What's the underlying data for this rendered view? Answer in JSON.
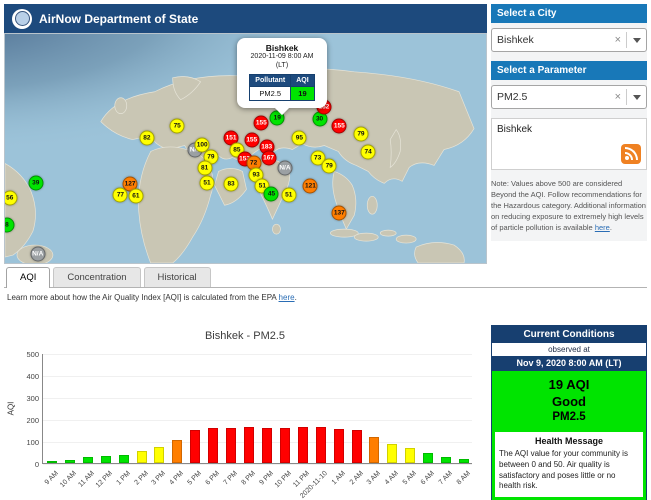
{
  "header": {
    "title": "AirNow Department of State"
  },
  "sidebar": {
    "city_select": {
      "label": "Select a City",
      "value": "Bishkek",
      "clear": "×"
    },
    "parameter_select": {
      "label": "Select a Parameter",
      "value": "PM2.5",
      "clear": "×"
    },
    "feed_box": {
      "city": "Bishkek"
    },
    "note": {
      "text_before": "Note: Values above 500 are considered Beyond the AQI. Follow recommendations for the Hazardous category. Additional information on reducing exposure to extremely high levels of particle pollution is available ",
      "link": "here",
      "text_after": "."
    }
  },
  "map": {
    "popup": {
      "city": "Bishkek",
      "datetime_line1": "2020-11-09 8:00 AM",
      "datetime_line2": "(LT)",
      "col_pollutant": "Pollutant",
      "col_aqi": "AQI",
      "row_pollutant": "PM2.5",
      "row_aqi": "19"
    },
    "markers": [
      {
        "v": "39",
        "l": "green",
        "x": 6.4,
        "y": 65
      },
      {
        "v": "56",
        "l": "yellow",
        "x": 1.0,
        "y": 71.5
      },
      {
        "v": "8",
        "l": "green",
        "x": 0.4,
        "y": 83.5
      },
      {
        "v": "N/A",
        "l": "na",
        "x": 6.8,
        "y": 96
      },
      {
        "v": "82",
        "l": "yellow",
        "x": 29.5,
        "y": 45.5
      },
      {
        "v": "75",
        "l": "yellow",
        "x": 35.8,
        "y": 40
      },
      {
        "v": "127",
        "l": "orange",
        "x": 26.0,
        "y": 65.5
      },
      {
        "v": "77",
        "l": "yellow",
        "x": 24.0,
        "y": 70.5
      },
      {
        "v": "61",
        "l": "yellow",
        "x": 27.2,
        "y": 70.8
      },
      {
        "v": "N/A",
        "l": "na",
        "x": 39.6,
        "y": 50.5
      },
      {
        "v": "100",
        "l": "yellow",
        "x": 41.0,
        "y": 48.5
      },
      {
        "v": "79",
        "l": "yellow",
        "x": 42.8,
        "y": 53.5
      },
      {
        "v": "151",
        "l": "red",
        "x": 47.0,
        "y": 45.5
      },
      {
        "v": "81",
        "l": "yellow",
        "x": 41.5,
        "y": 58.5
      },
      {
        "v": "51",
        "l": "yellow",
        "x": 42.0,
        "y": 65.0
      },
      {
        "v": "83",
        "l": "yellow",
        "x": 47.0,
        "y": 65.5
      },
      {
        "v": "163",
        "l": "red",
        "x": 52.4,
        "y": 27.5
      },
      {
        "v": "155",
        "l": "red",
        "x": 53.3,
        "y": 39.0
      },
      {
        "v": "19",
        "l": "green",
        "x": 56.6,
        "y": 36.5
      },
      {
        "v": "85",
        "l": "yellow",
        "x": 48.2,
        "y": 50.5
      },
      {
        "v": "155",
        "l": "red",
        "x": 51.3,
        "y": 46.5
      },
      {
        "v": "183",
        "l": "red",
        "x": 54.4,
        "y": 49.5
      },
      {
        "v": "153",
        "l": "red",
        "x": 49.8,
        "y": 54.5
      },
      {
        "v": "72",
        "l": "orange",
        "x": 51.7,
        "y": 56.5
      },
      {
        "v": "167",
        "l": "red",
        "x": 54.8,
        "y": 54.0
      },
      {
        "v": "93",
        "l": "yellow",
        "x": 52.2,
        "y": 61.5
      },
      {
        "v": "51",
        "l": "yellow",
        "x": 53.5,
        "y": 66.5
      },
      {
        "v": "45",
        "l": "green",
        "x": 55.4,
        "y": 70.0
      },
      {
        "v": "N/A",
        "l": "na",
        "x": 58.2,
        "y": 58.5
      },
      {
        "v": "95",
        "l": "yellow",
        "x": 61.2,
        "y": 45.5
      },
      {
        "v": "30",
        "l": "green",
        "x": 65.4,
        "y": 37.0
      },
      {
        "v": "152",
        "l": "red",
        "x": 66.3,
        "y": 32.0
      },
      {
        "v": "155",
        "l": "red",
        "x": 69.5,
        "y": 40.0
      },
      {
        "v": "73",
        "l": "yellow",
        "x": 65.0,
        "y": 54.0
      },
      {
        "v": "79",
        "l": "yellow",
        "x": 67.4,
        "y": 57.5
      },
      {
        "v": "121",
        "l": "orange",
        "x": 63.5,
        "y": 66.5
      },
      {
        "v": "137",
        "l": "orange",
        "x": 69.5,
        "y": 78.0
      },
      {
        "v": "51",
        "l": "yellow",
        "x": 59.0,
        "y": 70.5
      },
      {
        "v": "79",
        "l": "yellow",
        "x": 74.0,
        "y": 43.5
      },
      {
        "v": "74",
        "l": "yellow",
        "x": 75.5,
        "y": 51.5
      }
    ]
  },
  "tabs": [
    {
      "label": "AQI",
      "active": true
    },
    {
      "label": "Concentration",
      "active": false
    },
    {
      "label": "Historical",
      "active": false
    }
  ],
  "learn_more": {
    "text_before": "Learn more about how the Air Quality Index [AQI] is calculated from the EPA ",
    "link": "here",
    "text_after": "."
  },
  "chart_data": {
    "type": "bar",
    "title": "Bishkek - PM2.5",
    "xlabel": "",
    "ylabel": "AQI",
    "ylim": [
      0,
      500
    ],
    "yticks": [
      0,
      100,
      200,
      300,
      400,
      500
    ],
    "categories": [
      "9 AM",
      "10 AM",
      "11 AM",
      "12 PM",
      "1 PM",
      "2 PM",
      "3 PM",
      "4 PM",
      "5 PM",
      "6 PM",
      "7 PM",
      "8 PM",
      "9 PM",
      "10 PM",
      "11 PM",
      "2020-11-10",
      "1 AM",
      "2 AM",
      "3 AM",
      "4 AM",
      "5 AM",
      "6 AM",
      "7 AM",
      "8 AM"
    ],
    "values": [
      8,
      14,
      28,
      32,
      38,
      55,
      72,
      105,
      152,
      158,
      160,
      162,
      158,
      160,
      165,
      162,
      155,
      152,
      120,
      88,
      68,
      45,
      28,
      19
    ],
    "levels": [
      "green",
      "green",
      "green",
      "green",
      "green",
      "yellow",
      "yellow",
      "orange",
      "red",
      "red",
      "red",
      "red",
      "red",
      "red",
      "red",
      "red",
      "red",
      "red",
      "orange",
      "yellow",
      "yellow",
      "green",
      "green",
      "green"
    ]
  },
  "current_conditions": {
    "title": "Current Conditions",
    "observed_label": "observed at",
    "observed_time": "Nov 9, 2020 8:00 AM (LT)",
    "aqi": "19 AQI",
    "category": "Good",
    "parameter": "PM2.5",
    "health_title": "Health Message",
    "health_message": "The AQI value for your community is between 0 and 50. Air quality is satisfactory and poses little or no health risk."
  },
  "aqi_colors": {
    "green": "#00e400",
    "yellow": "#ffff00",
    "orange": "#ff7e00",
    "red": "#ff0000",
    "na": "#9ba0a3"
  }
}
